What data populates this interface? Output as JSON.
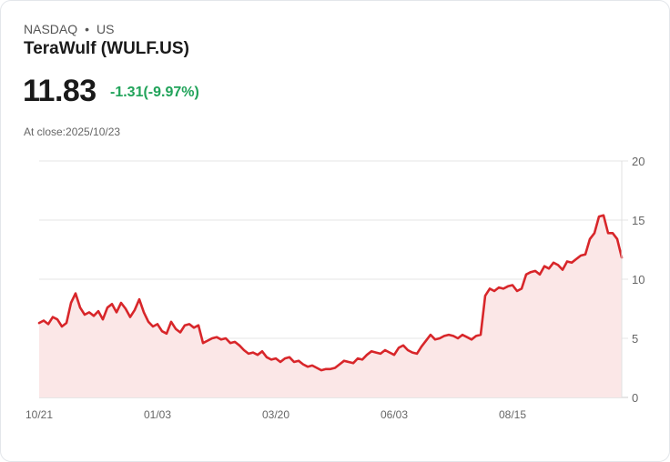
{
  "header": {
    "exchange": "NASDAQ",
    "separator": "•",
    "region": "US",
    "title": "TeraWulf (WULF.US)",
    "price": "11.83",
    "change": "-1.31(-9.97%)",
    "close_label": "At close:2025/10/23"
  },
  "colors": {
    "line": "#d8262a",
    "fill": "#fbe7e7",
    "change_negative": "#21a35a",
    "grid": "#e5e5e5"
  },
  "chart_data": {
    "type": "area",
    "title": "TeraWulf (WULF.US)",
    "xlabel": "",
    "ylabel": "",
    "ylim": [
      0,
      20
    ],
    "yticks": [
      0,
      5,
      10,
      15,
      20
    ],
    "xtick_labels": [
      "10/21",
      "01/03",
      "03/20",
      "06/03",
      "08/15"
    ],
    "grid": true,
    "legend": "none",
    "series": [
      {
        "name": "WULF.US",
        "values": [
          6.3,
          6.5,
          6.2,
          6.8,
          6.6,
          6.0,
          6.3,
          8.0,
          8.8,
          7.6,
          7.0,
          7.2,
          6.9,
          7.3,
          6.6,
          7.6,
          7.9,
          7.2,
          8.0,
          7.5,
          6.8,
          7.4,
          8.3,
          7.2,
          6.4,
          6.0,
          6.2,
          5.6,
          5.4,
          6.4,
          5.8,
          5.5,
          6.1,
          6.2,
          5.9,
          6.1,
          4.6,
          4.8,
          5.0,
          5.1,
          4.9,
          5.0,
          4.6,
          4.7,
          4.4,
          4.0,
          3.7,
          3.8,
          3.6,
          3.9,
          3.4,
          3.2,
          3.3,
          3.0,
          3.3,
          3.4,
          3.0,
          3.1,
          2.8,
          2.6,
          2.7,
          2.5,
          2.3,
          2.4,
          2.4,
          2.5,
          2.8,
          3.1,
          3.0,
          2.9,
          3.3,
          3.2,
          3.6,
          3.9,
          3.8,
          3.7,
          4.0,
          3.8,
          3.6,
          4.2,
          4.4,
          4.0,
          3.8,
          3.7,
          4.3,
          4.8,
          5.3,
          4.9,
          5.0,
          5.2,
          5.3,
          5.2,
          5.0,
          5.3,
          5.1,
          4.9,
          5.2,
          5.3,
          8.6,
          9.2,
          9.0,
          9.3,
          9.2,
          9.4,
          9.5,
          9.0,
          9.2,
          10.4,
          10.6,
          10.7,
          10.4,
          11.1,
          10.9,
          11.4,
          11.2,
          10.8,
          11.5,
          11.4,
          11.7,
          12.0,
          12.1,
          13.4,
          13.9,
          15.3,
          15.4,
          13.9,
          13.9,
          13.4,
          11.83
        ]
      }
    ]
  }
}
